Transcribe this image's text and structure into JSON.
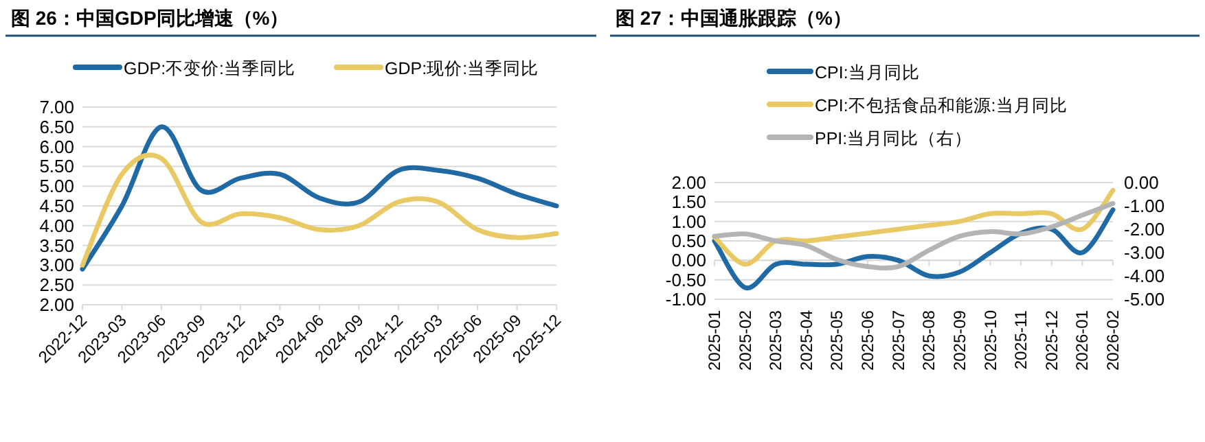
{
  "chart_data": [
    {
      "type": "line",
      "title": "图 26：中国GDP同比增速（%）",
      "categories": [
        "2022-12",
        "2023-03",
        "2023-06",
        "2023-09",
        "2023-12",
        "2024-03",
        "2024-06",
        "2024-09",
        "2024-12",
        "2025-03",
        "2025-06",
        "2025-09",
        "2025-12"
      ],
      "series": [
        {
          "name": "GDP:不变价:当季同比",
          "color": "#1f6aa5",
          "values": [
            2.9,
            4.5,
            6.5,
            4.9,
            5.2,
            5.3,
            4.7,
            4.6,
            5.4,
            5.4,
            5.2,
            4.8,
            4.5
          ]
        },
        {
          "name": "GDP:现价:当季同比",
          "color": "#e8c964",
          "values": [
            3.0,
            5.3,
            5.7,
            4.1,
            4.3,
            4.2,
            3.9,
            4.0,
            4.6,
            4.6,
            3.9,
            3.7,
            3.8
          ]
        }
      ],
      "ylim": [
        2,
        7
      ],
      "yticks": [
        {
          "value": 2,
          "label": "2.00"
        },
        {
          "value": 2.5,
          "label": "2.50"
        },
        {
          "value": 3,
          "label": "3.00"
        },
        {
          "value": 3.5,
          "label": "3.50"
        },
        {
          "value": 4,
          "label": "4.00"
        },
        {
          "value": 4.5,
          "label": "4.50"
        },
        {
          "value": 5,
          "label": "5.00"
        },
        {
          "value": 5.5,
          "label": "5.50"
        },
        {
          "value": 6,
          "label": "6.00"
        },
        {
          "value": 6.5,
          "label": "6.50"
        },
        {
          "value": 7,
          "label": "7.00"
        }
      ],
      "grid": "y",
      "legend": "top",
      "marker": "none",
      "line_style": "solid"
    },
    {
      "type": "line",
      "title": "图 27：中国通胀跟踪（%）",
      "categories": [
        "2025-01",
        "2025-02",
        "2025-03",
        "2025-04",
        "2025-05",
        "2025-06",
        "2025-07",
        "2025-08",
        "2025-09",
        "2025-10",
        "2025-11",
        "2025-12",
        "2026-01",
        "2026-02"
      ],
      "series": [
        {
          "name": "CPI:当月同比",
          "color": "#1f6aa5",
          "values": [
            0.5,
            -0.7,
            -0.1,
            -0.1,
            -0.1,
            0.1,
            0.0,
            -0.4,
            -0.3,
            0.2,
            0.7,
            0.8,
            0.2,
            1.3
          ]
        },
        {
          "name": "CPI:不包括食品和能源:当月同比",
          "color": "#e8c964",
          "values": [
            0.6,
            -0.1,
            0.5,
            0.5,
            0.6,
            0.7,
            0.8,
            0.9,
            1.0,
            1.2,
            1.2,
            1.2,
            0.8,
            1.8
          ]
        },
        {
          "name": "PPI:当月同比（右）",
          "color": "#b4b4b4",
          "axis": "y2",
          "values": [
            -2.3,
            -2.2,
            -2.5,
            -2.7,
            -3.3,
            -3.6,
            -3.6,
            -2.9,
            -2.3,
            -2.1,
            -2.2,
            -1.9,
            -1.4,
            -0.9
          ]
        }
      ],
      "ylim": [
        -1,
        2
      ],
      "yticks": [
        {
          "value": -1,
          "label": "-1.00"
        },
        {
          "value": -0.5,
          "label": "-0.50"
        },
        {
          "value": 0,
          "label": "0.00"
        },
        {
          "value": 0.5,
          "label": "0.50"
        },
        {
          "value": 1,
          "label": "1.00"
        },
        {
          "value": 1.5,
          "label": "1.50"
        },
        {
          "value": 2,
          "label": "2.00"
        }
      ],
      "y2lim": [
        -5,
        0
      ],
      "y2ticks": [
        {
          "value": -5,
          "label": "-5.00"
        },
        {
          "value": -4,
          "label": "-4.00"
        },
        {
          "value": -3,
          "label": "-3.00"
        },
        {
          "value": -2,
          "label": "-2.00"
        },
        {
          "value": -1,
          "label": "-1.00"
        },
        {
          "value": 0,
          "label": "0.00"
        }
      ],
      "grid": "y",
      "legend": "top",
      "marker": "none",
      "line_style": "solid"
    }
  ]
}
